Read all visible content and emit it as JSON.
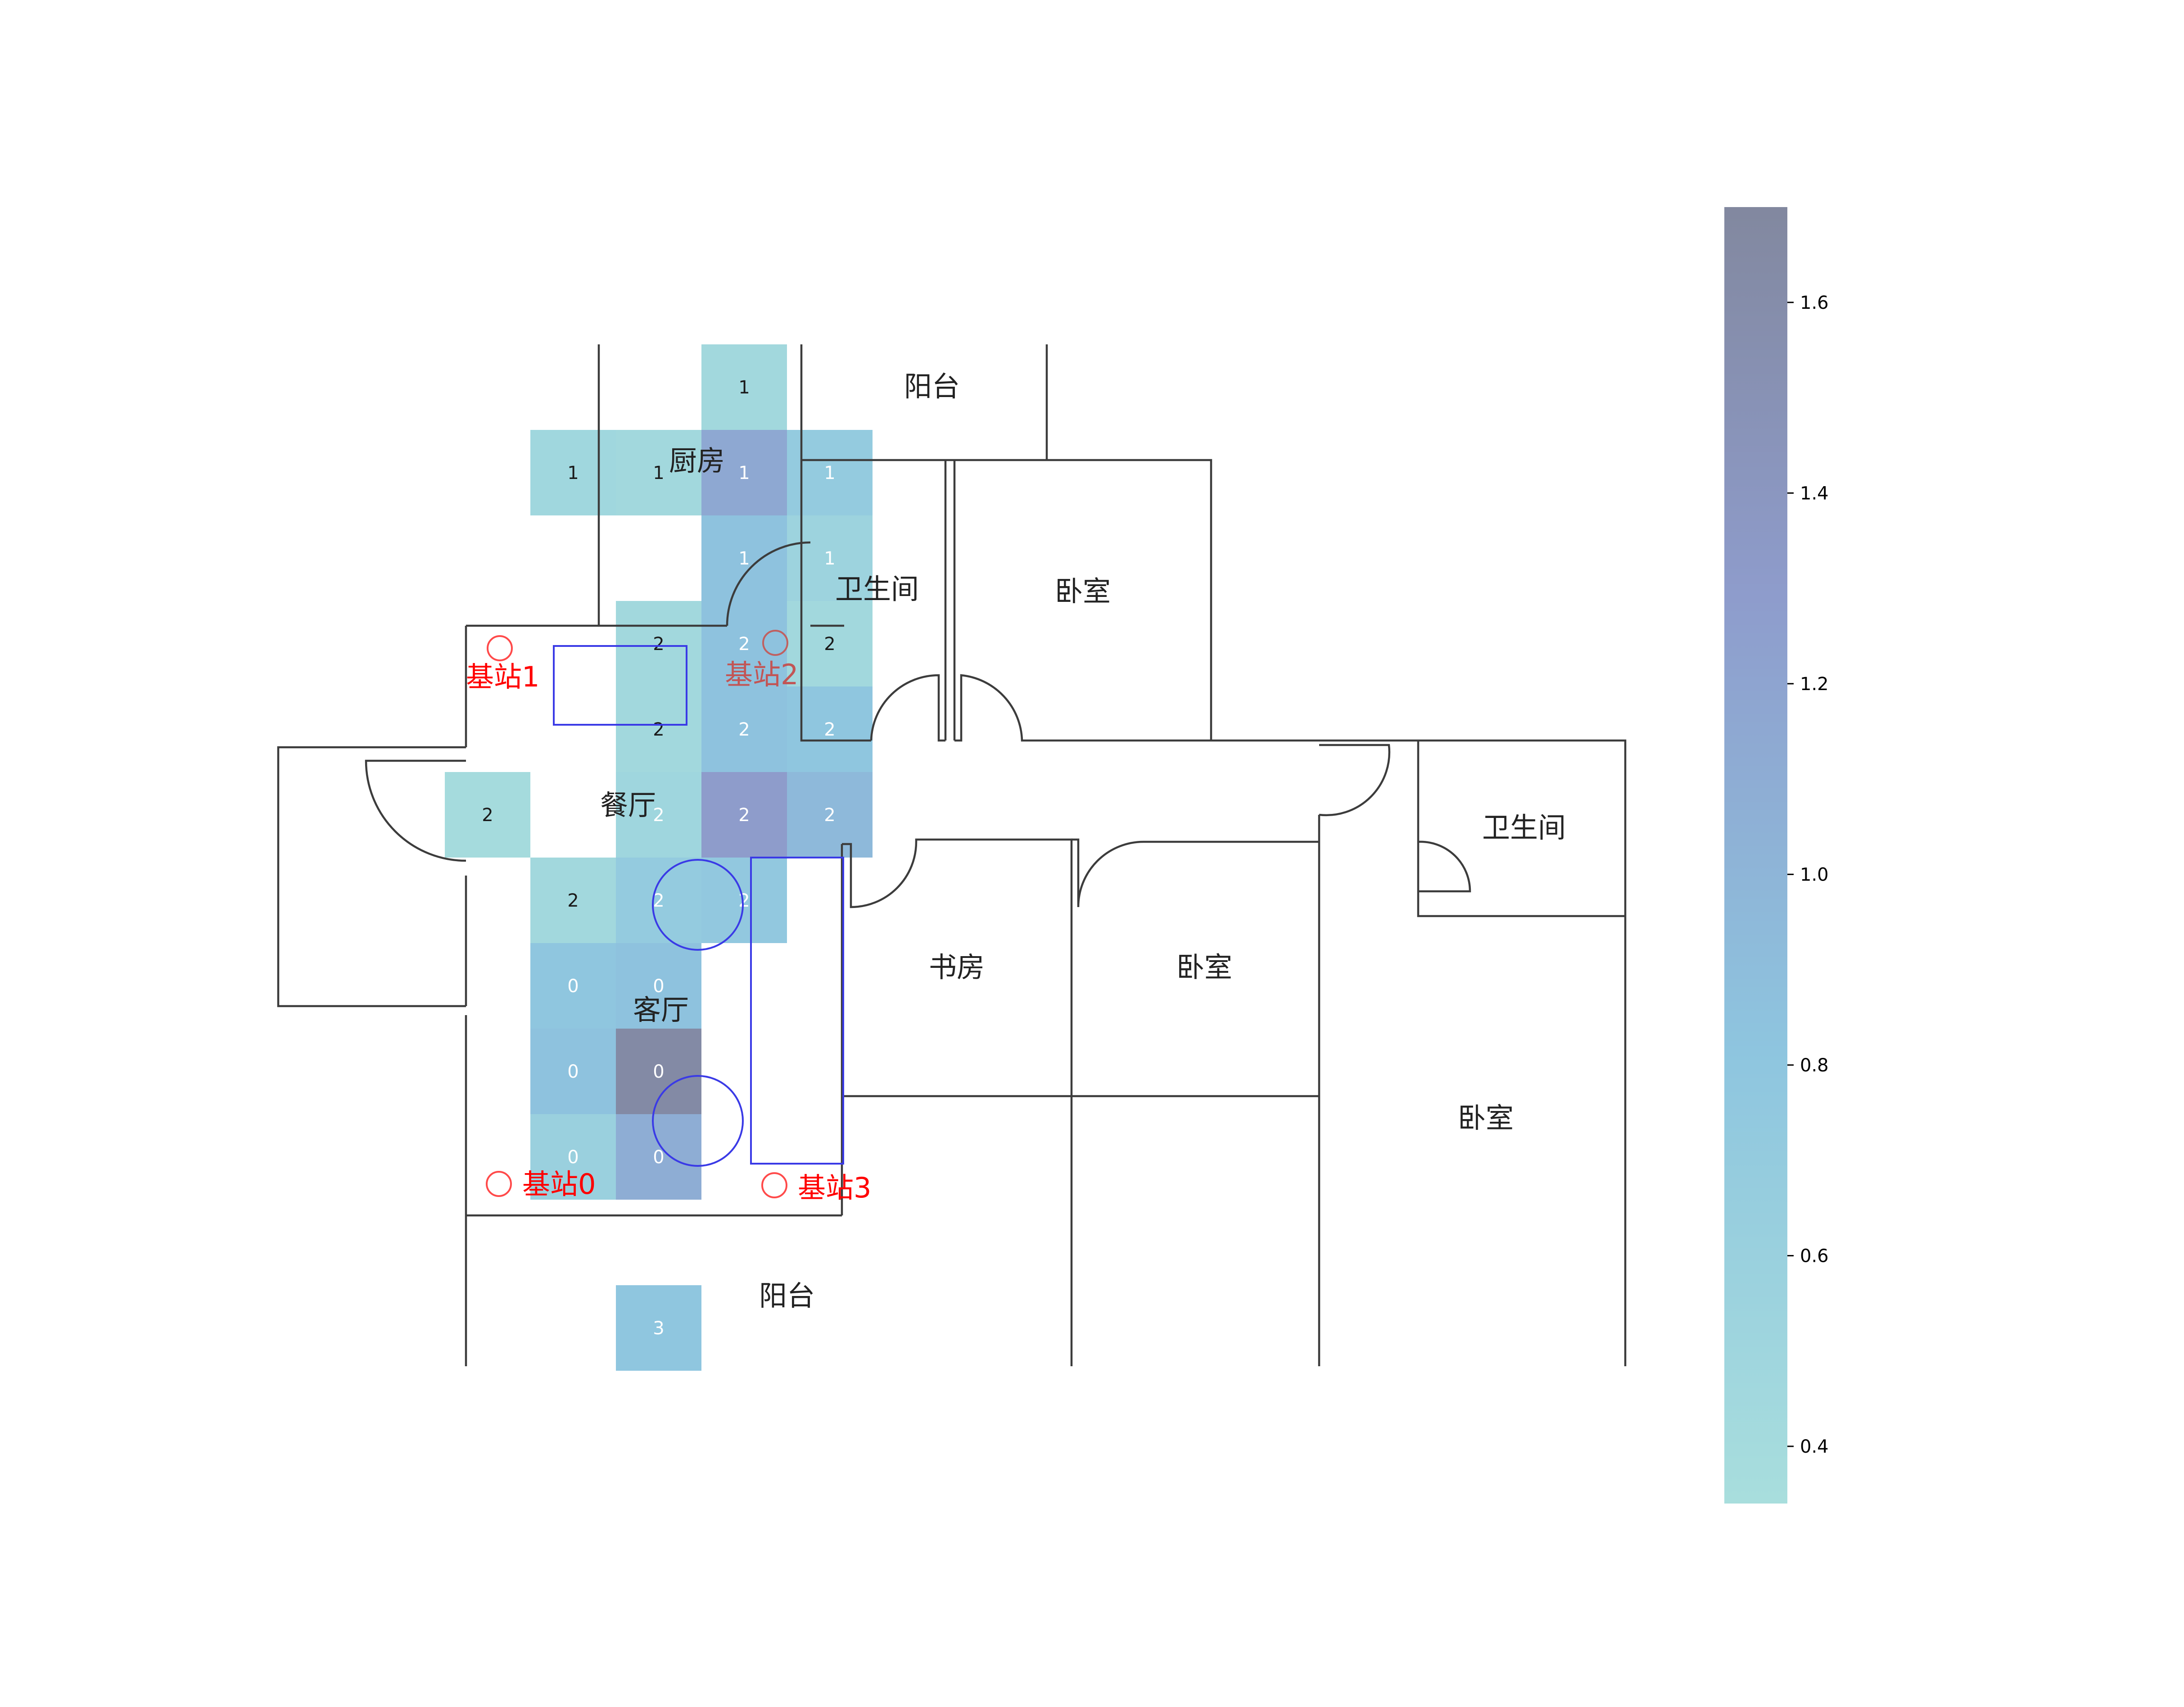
{
  "floorplan": {
    "rooms": [
      {
        "name": "阳台",
        "id": "balcony-top"
      },
      {
        "name": "厨房",
        "id": "kitchen"
      },
      {
        "name": "卫生间",
        "id": "bathroom-1"
      },
      {
        "name": "卧室",
        "id": "bedroom-1"
      },
      {
        "name": "餐厅",
        "id": "dining"
      },
      {
        "name": "卫生间",
        "id": "bathroom-2"
      },
      {
        "name": "书房",
        "id": "study"
      },
      {
        "name": "卧室",
        "id": "bedroom-2"
      },
      {
        "name": "客厅",
        "id": "living"
      },
      {
        "name": "卧室",
        "id": "bedroom-3"
      },
      {
        "name": "阳台",
        "id": "balcony-bottom"
      }
    ],
    "stations": [
      {
        "label": "基站0"
      },
      {
        "label": "基站1"
      },
      {
        "label": "基站2"
      },
      {
        "label": "基站3"
      }
    ]
  },
  "chart_data": {
    "type": "heatmap",
    "cell_value_kind": "cluster id",
    "cells": [
      {
        "row": 0,
        "col": 3,
        "label": "1",
        "value": 0.45
      },
      {
        "row": 1,
        "col": 1,
        "label": "1",
        "value": 0.48
      },
      {
        "row": 1,
        "col": 2,
        "label": "1",
        "value": 0.45
      },
      {
        "row": 1,
        "col": 3,
        "label": "1",
        "value": 1.15
      },
      {
        "row": 1,
        "col": 4,
        "label": "1",
        "value": 0.7
      },
      {
        "row": 2,
        "col": 3,
        "label": "1",
        "value": 0.85
      },
      {
        "row": 2,
        "col": 4,
        "label": "1",
        "value": 0.55
      },
      {
        "row": 3,
        "col": 2,
        "label": "2",
        "value": 0.45
      },
      {
        "row": 3,
        "col": 3,
        "label": "2",
        "value": 0.85
      },
      {
        "row": 3,
        "col": 4,
        "label": "2",
        "value": 0.45
      },
      {
        "row": 4,
        "col": 2,
        "label": "2",
        "value": 0.45
      },
      {
        "row": 4,
        "col": 3,
        "label": "2",
        "value": 0.85
      },
      {
        "row": 4,
        "col": 4,
        "label": "2",
        "value": 0.8
      },
      {
        "row": 5,
        "col": 0,
        "label": "2",
        "value": 0.4
      },
      {
        "row": 5,
        "col": 2,
        "label": "2",
        "value": 0.5
      },
      {
        "row": 5,
        "col": 3,
        "label": "2",
        "value": 1.3
      },
      {
        "row": 5,
        "col": 4,
        "label": "2",
        "value": 0.95
      },
      {
        "row": 6,
        "col": 1,
        "label": "2",
        "value": 0.45
      },
      {
        "row": 6,
        "col": 2,
        "label": "2",
        "value": 0.7
      },
      {
        "row": 6,
        "col": 3,
        "label": "2",
        "value": 0.75
      },
      {
        "row": 7,
        "col": 1,
        "label": "0",
        "value": 0.8
      },
      {
        "row": 7,
        "col": 2,
        "label": "0",
        "value": 0.85
      },
      {
        "row": 8,
        "col": 1,
        "label": "0",
        "value": 0.85
      },
      {
        "row": 8,
        "col": 2,
        "label": "0",
        "value": 1.65
      },
      {
        "row": 9,
        "col": 1,
        "label": "0",
        "value": 0.6
      },
      {
        "row": 9,
        "col": 2,
        "label": "0",
        "value": 1.1
      },
      {
        "row": 11,
        "col": 2,
        "label": "3",
        "value": 0.8
      }
    ],
    "colorbar": {
      "range": [
        0.34,
        1.7
      ],
      "ticks": [
        0.4,
        0.6,
        0.8,
        1.0,
        1.2,
        1.4,
        1.6
      ],
      "tick_labels": [
        "0.4",
        "0.6",
        "0.8",
        "1.0",
        "1.2",
        "1.4",
        "1.6"
      ],
      "colors": [
        "#a8dedd",
        "#8ec5df",
        "#8e9ccc",
        "#82889f"
      ]
    }
  }
}
